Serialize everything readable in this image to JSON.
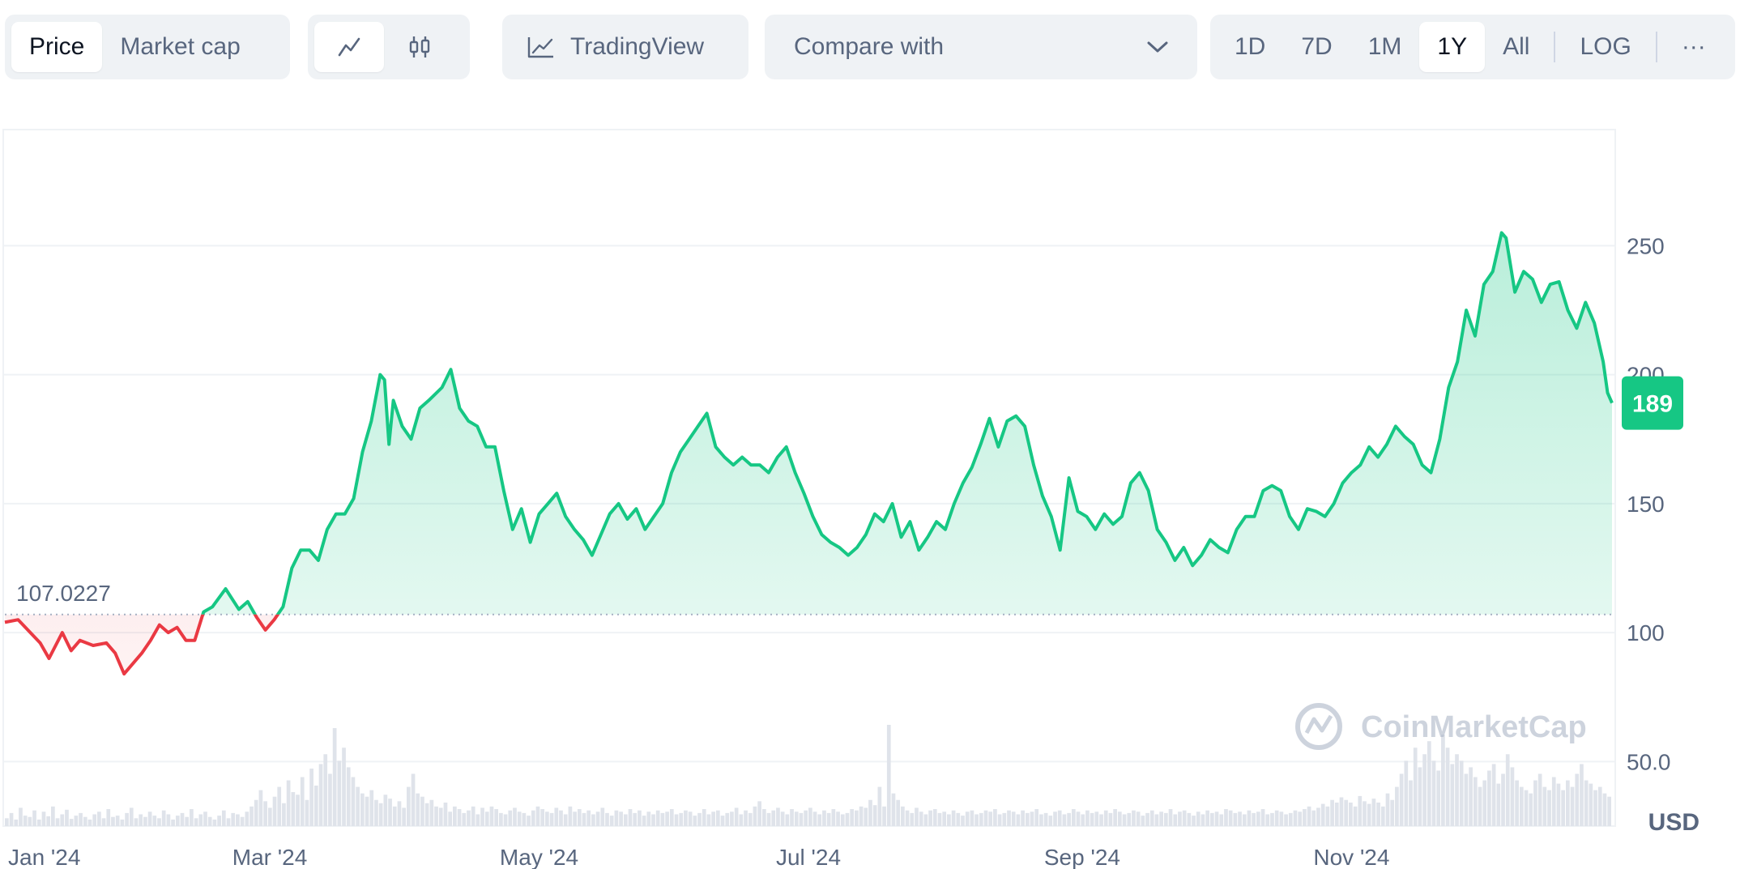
{
  "toolbar": {
    "view_tabs": [
      {
        "label": "Price",
        "active": true
      },
      {
        "label": "Market cap",
        "active": false
      }
    ],
    "chart_type_icons": [
      {
        "icon": "line-chart-icon",
        "active": true
      },
      {
        "icon": "candlestick-icon",
        "active": false
      }
    ],
    "tradingview": {
      "label": "TradingView",
      "icon": "line-chart-icon"
    },
    "compare": {
      "label": "Compare with",
      "icon": "chevron-down-icon"
    },
    "ranges": [
      {
        "label": "1D",
        "active": false
      },
      {
        "label": "7D",
        "active": false
      },
      {
        "label": "1M",
        "active": false
      },
      {
        "label": "1Y",
        "active": true
      },
      {
        "label": "All",
        "active": false
      }
    ],
    "log_label": "LOG",
    "more_label": "···"
  },
  "watermark": "CoinMarketCap",
  "colors": {
    "up": "#16c784",
    "down": "#ea3943",
    "grid": "#eff2f5",
    "axis_text": "#58667e",
    "volume": "#dfe3ea"
  },
  "chart_data": {
    "type": "area",
    "currency_label": "USD",
    "baseline_label": "107.0227",
    "baseline": 107.0227,
    "current_label": "189",
    "current": 189,
    "ylim": [
      25,
      295
    ],
    "y_ticks": [
      {
        "value": 250,
        "label": "250"
      },
      {
        "value": 200,
        "label": "200"
      },
      {
        "value": 150,
        "label": "150"
      },
      {
        "value": 100,
        "label": "100"
      },
      {
        "value": 50,
        "label": "50.0"
      }
    ],
    "x_ticks": [
      {
        "day": 0,
        "label": "Jan '24"
      },
      {
        "day": 60,
        "label": "Mar '24"
      },
      {
        "day": 121,
        "label": "May '24"
      },
      {
        "day": 182,
        "label": "Jul '24"
      },
      {
        "day": 244,
        "label": "Sep '24"
      },
      {
        "day": 305,
        "label": "Nov '24"
      }
    ],
    "x_range_days": [
      0,
      364
    ],
    "series": [
      {
        "points": [
          [
            0,
            104
          ],
          [
            3,
            105
          ],
          [
            8,
            96
          ],
          [
            10,
            90
          ],
          [
            13,
            100
          ],
          [
            15,
            93
          ],
          [
            17,
            97
          ],
          [
            20,
            95
          ],
          [
            23,
            96
          ],
          [
            25,
            92
          ],
          [
            27,
            84
          ],
          [
            29,
            88
          ],
          [
            31,
            92
          ],
          [
            33,
            97
          ],
          [
            35,
            103
          ],
          [
            37,
            100
          ],
          [
            39,
            102
          ],
          [
            41,
            97
          ],
          [
            43,
            97
          ],
          [
            45,
            108
          ],
          [
            47,
            110
          ],
          [
            50,
            117
          ],
          [
            53,
            109
          ],
          [
            55,
            112
          ],
          [
            57,
            106
          ],
          [
            59,
            101
          ],
          [
            61,
            105
          ],
          [
            63,
            110
          ],
          [
            65,
            125
          ],
          [
            67,
            132
          ],
          [
            69,
            132
          ],
          [
            71,
            128
          ],
          [
            73,
            140
          ],
          [
            75,
            146
          ],
          [
            77,
            146
          ],
          [
            79,
            152
          ],
          [
            81,
            170
          ],
          [
            83,
            182
          ],
          [
            85,
            200
          ],
          [
            86,
            198
          ],
          [
            87,
            173
          ],
          [
            88,
            190
          ],
          [
            90,
            180
          ],
          [
            92,
            175
          ],
          [
            94,
            187
          ],
          [
            96,
            190
          ],
          [
            99,
            195
          ],
          [
            101,
            202
          ],
          [
            103,
            187
          ],
          [
            105,
            182
          ],
          [
            107,
            180
          ],
          [
            109,
            172
          ],
          [
            111,
            172
          ],
          [
            113,
            155
          ],
          [
            115,
            140
          ],
          [
            117,
            148
          ],
          [
            119,
            135
          ],
          [
            121,
            146
          ],
          [
            123,
            150
          ],
          [
            125,
            154
          ],
          [
            127,
            145
          ],
          [
            129,
            140
          ],
          [
            131,
            136
          ],
          [
            133,
            130
          ],
          [
            135,
            138
          ],
          [
            137,
            146
          ],
          [
            139,
            150
          ],
          [
            141,
            144
          ],
          [
            143,
            148
          ],
          [
            145,
            140
          ],
          [
            147,
            145
          ],
          [
            149,
            150
          ],
          [
            151,
            162
          ],
          [
            153,
            170
          ],
          [
            155,
            175
          ],
          [
            157,
            180
          ],
          [
            159,
            185
          ],
          [
            161,
            172
          ],
          [
            163,
            168
          ],
          [
            165,
            165
          ],
          [
            167,
            168
          ],
          [
            169,
            165
          ],
          [
            171,
            165
          ],
          [
            173,
            162
          ],
          [
            175,
            168
          ],
          [
            177,
            172
          ],
          [
            179,
            162
          ],
          [
            181,
            154
          ],
          [
            183,
            145
          ],
          [
            185,
            138
          ],
          [
            187,
            135
          ],
          [
            189,
            133
          ],
          [
            191,
            130
          ],
          [
            193,
            133
          ],
          [
            195,
            138
          ],
          [
            197,
            146
          ],
          [
            199,
            143
          ],
          [
            201,
            150
          ],
          [
            203,
            137
          ],
          [
            205,
            143
          ],
          [
            207,
            132
          ],
          [
            209,
            137
          ],
          [
            211,
            143
          ],
          [
            213,
            140
          ],
          [
            215,
            150
          ],
          [
            217,
            158
          ],
          [
            219,
            164
          ],
          [
            221,
            173
          ],
          [
            223,
            183
          ],
          [
            225,
            172
          ],
          [
            227,
            182
          ],
          [
            229,
            184
          ],
          [
            231,
            180
          ],
          [
            233,
            165
          ],
          [
            235,
            153
          ],
          [
            237,
            145
          ],
          [
            239,
            132
          ],
          [
            241,
            160
          ],
          [
            243,
            147
          ],
          [
            245,
            145
          ],
          [
            247,
            140
          ],
          [
            249,
            146
          ],
          [
            251,
            142
          ],
          [
            253,
            145
          ],
          [
            255,
            158
          ],
          [
            257,
            162
          ],
          [
            259,
            155
          ],
          [
            261,
            140
          ],
          [
            263,
            135
          ],
          [
            265,
            128
          ],
          [
            267,
            133
          ],
          [
            269,
            126
          ],
          [
            271,
            130
          ],
          [
            273,
            136
          ],
          [
            275,
            133
          ],
          [
            277,
            131
          ],
          [
            279,
            140
          ],
          [
            281,
            145
          ],
          [
            283,
            145
          ],
          [
            285,
            155
          ],
          [
            287,
            157
          ],
          [
            289,
            155
          ],
          [
            291,
            145
          ],
          [
            293,
            140
          ],
          [
            295,
            148
          ],
          [
            297,
            147
          ],
          [
            299,
            145
          ],
          [
            301,
            150
          ],
          [
            303,
            158
          ],
          [
            305,
            162
          ],
          [
            307,
            165
          ],
          [
            309,
            172
          ],
          [
            311,
            168
          ],
          [
            313,
            173
          ],
          [
            315,
            180
          ],
          [
            317,
            176
          ],
          [
            319,
            173
          ],
          [
            321,
            165
          ],
          [
            323,
            162
          ],
          [
            325,
            175
          ],
          [
            327,
            195
          ],
          [
            329,
            205
          ],
          [
            331,
            225
          ],
          [
            333,
            215
          ],
          [
            335,
            235
          ],
          [
            337,
            240
          ],
          [
            339,
            255
          ],
          [
            340,
            253
          ],
          [
            342,
            232
          ],
          [
            344,
            240
          ],
          [
            346,
            237
          ],
          [
            348,
            228
          ],
          [
            350,
            235
          ],
          [
            352,
            236
          ],
          [
            354,
            225
          ],
          [
            356,
            218
          ],
          [
            358,
            228
          ],
          [
            360,
            220
          ],
          [
            362,
            205
          ],
          [
            363,
            193
          ],
          [
            364,
            189
          ]
        ]
      }
    ],
    "volume": [
      12,
      20,
      10,
      28,
      16,
      14,
      24,
      10,
      22,
      15,
      30,
      12,
      18,
      25,
      11,
      16,
      20,
      14,
      10,
      18,
      22,
      12,
      26,
      14,
      16,
      10,
      20,
      28,
      12,
      18,
      14,
      22,
      16,
      12,
      24,
      18,
      10,
      16,
      20,
      14,
      26,
      12,
      18,
      22,
      14,
      10,
      16,
      24,
      12,
      20,
      18,
      14,
      22,
      30,
      40,
      55,
      38,
      28,
      45,
      60,
      35,
      70,
      52,
      48,
      75,
      40,
      88,
      62,
      95,
      110,
      80,
      150,
      100,
      120,
      90,
      75,
      60,
      50,
      45,
      55,
      40,
      35,
      48,
      42,
      30,
      38,
      28,
      60,
      80,
      50,
      45,
      35,
      40,
      30,
      28,
      36,
      22,
      30,
      26,
      20,
      24,
      30,
      18,
      28,
      22,
      30,
      26,
      20,
      18,
      24,
      28,
      22,
      20,
      16,
      24,
      30,
      26,
      22,
      20,
      28,
      24,
      18,
      30,
      22,
      26,
      20,
      24,
      18,
      22,
      28,
      20,
      16,
      24,
      22,
      18,
      26,
      20,
      24,
      16,
      22,
      18,
      24,
      20,
      22,
      26,
      18,
      20,
      24,
      22,
      16,
      20,
      26,
      18,
      22,
      24,
      16,
      20,
      22,
      28,
      18,
      24,
      20,
      30,
      38,
      26,
      20,
      24,
      28,
      22,
      18,
      26,
      22,
      20,
      24,
      28,
      22,
      18,
      24,
      20,
      26,
      22,
      18,
      20,
      26,
      24,
      30,
      28,
      40,
      32,
      60,
      30,
      155,
      50,
      40,
      30,
      24,
      20,
      28,
      22,
      18,
      24,
      26,
      20,
      22,
      18,
      24,
      20,
      16,
      22,
      24,
      18,
      20,
      24,
      22,
      26,
      18,
      20,
      24,
      22,
      18,
      24,
      20,
      22,
      26,
      18,
      20,
      16,
      22,
      24,
      18,
      20,
      26,
      22,
      18,
      24,
      20,
      22,
      18,
      24,
      20,
      26,
      22,
      18,
      20,
      24,
      22,
      16,
      20,
      24,
      18,
      22,
      20,
      26,
      18,
      22,
      24,
      20,
      16,
      22,
      18,
      24,
      20,
      22,
      18,
      26,
      24,
      20,
      22,
      18,
      24,
      20,
      22,
      26,
      18,
      20,
      24,
      22,
      18,
      20,
      24,
      22,
      26,
      30,
      24,
      28,
      34,
      30,
      40,
      36,
      44,
      40,
      36,
      30,
      46,
      38,
      34,
      42,
      36,
      30,
      50,
      40,
      60,
      80,
      100,
      70,
      120,
      90,
      110,
      130,
      100,
      85,
      140,
      120,
      95,
      110,
      100,
      80,
      90,
      75,
      60,
      70,
      85,
      95,
      65,
      80,
      110,
      90,
      70,
      60,
      55,
      50,
      70,
      80,
      60,
      55,
      75,
      65,
      55,
      70,
      60,
      80,
      95,
      70,
      65,
      55,
      60,
      50,
      45
    ]
  }
}
